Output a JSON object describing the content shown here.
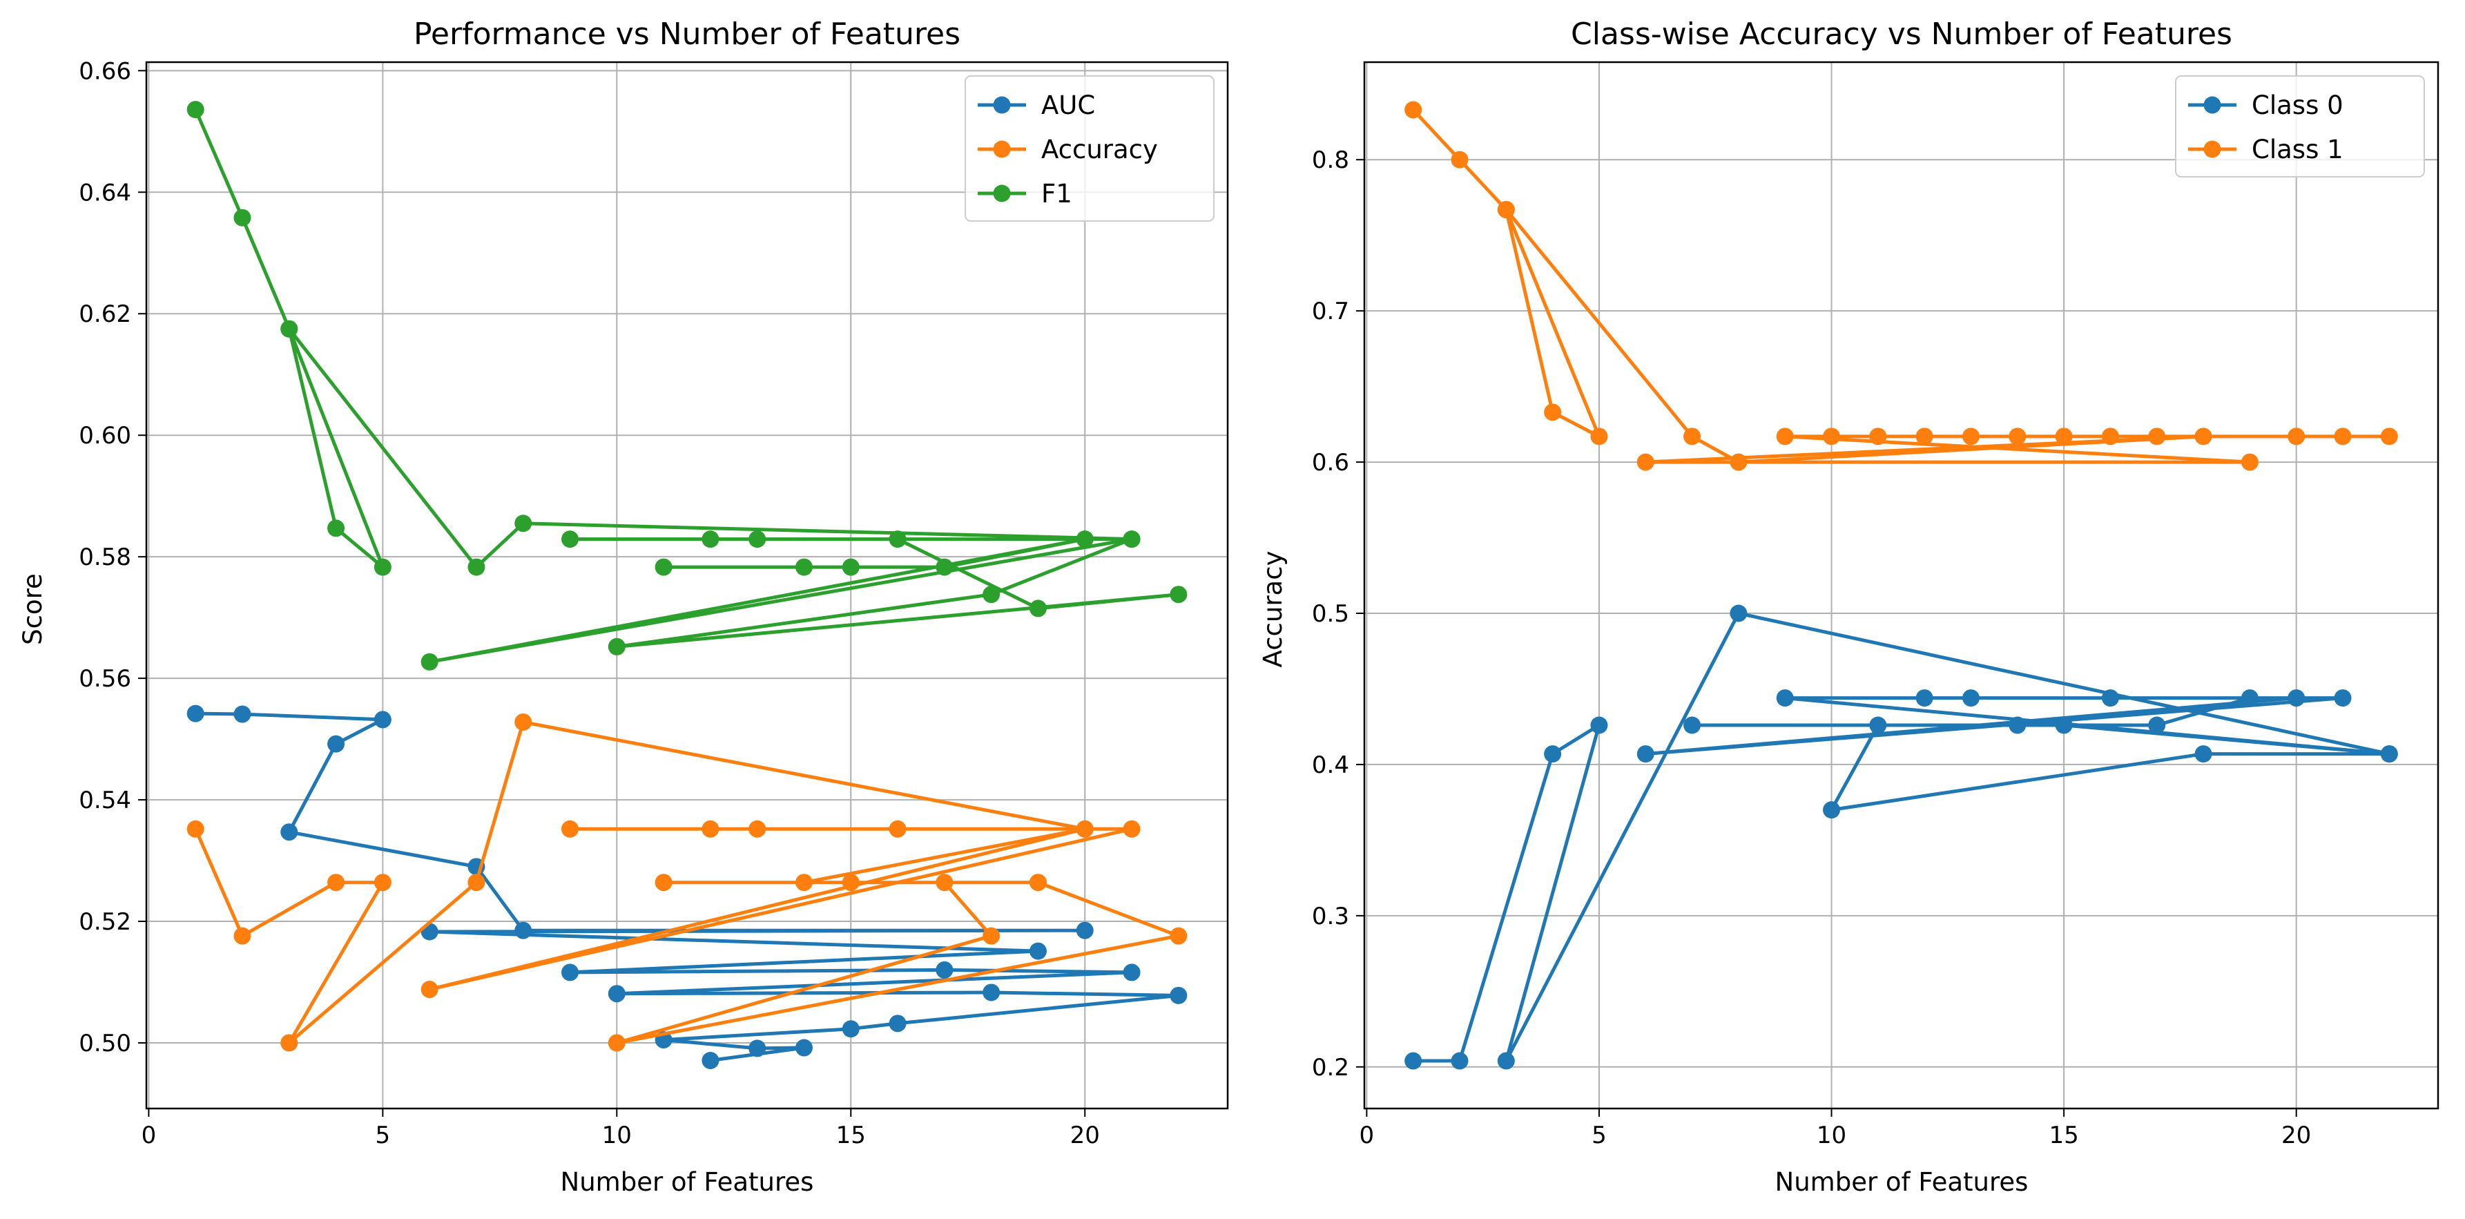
{
  "chart_data": [
    {
      "type": "line",
      "title": "Performance vs Number of Features",
      "xlabel": "Number of Features",
      "ylabel": "Score",
      "xlim": [
        -0.05,
        23.05
      ],
      "ylim": [
        0.4892,
        0.6614
      ],
      "xticks": [
        0,
        5,
        10,
        15,
        20
      ],
      "yticks": [
        0.5,
        0.52,
        0.54,
        0.56,
        0.58,
        0.6,
        0.62,
        0.64,
        0.66
      ],
      "ytick_decimals": 2,
      "grid": true,
      "legend": "top-right",
      "series": [
        {
          "name": "AUC",
          "color": "#1f77b4",
          "x": [
            1,
            2,
            5,
            4,
            3,
            7,
            8,
            20,
            6,
            19,
            9,
            17,
            21,
            10,
            18,
            22,
            16,
            15,
            11,
            13,
            14,
            12
          ],
          "y": [
            0.5542,
            0.5541,
            0.5532,
            0.5492,
            0.5347,
            0.529,
            0.5185,
            0.5185,
            0.5183,
            0.5151,
            0.5116,
            0.512,
            0.5116,
            0.5081,
            0.5083,
            0.5078,
            0.5032,
            0.5023,
            0.5005,
            0.4991,
            0.4992,
            0.4971
          ]
        },
        {
          "name": "Accuracy",
          "color": "#ff7f0e",
          "x": [
            1,
            2,
            4,
            5,
            3,
            7,
            8,
            20,
            9,
            12,
            13,
            16,
            21,
            6,
            20,
            14,
            11,
            15,
            19,
            22,
            10,
            18,
            17,
            19
          ],
          "y": [
            0.5352,
            0.5176,
            0.5264,
            0.5264,
            0.5,
            0.5264,
            0.5528,
            0.5352,
            0.5352,
            0.5352,
            0.5352,
            0.5352,
            0.5352,
            0.5088,
            0.5352,
            0.5264,
            0.5264,
            0.5264,
            0.5264,
            0.5176,
            0.5,
            0.5176,
            0.5264,
            0.5264
          ]
        },
        {
          "name": "F1",
          "color": "#2ca02c",
          "x": [
            1,
            2,
            3,
            4,
            5,
            3,
            7,
            8,
            21,
            9,
            20,
            12,
            13,
            16,
            19,
            22,
            10,
            18,
            21,
            6,
            20,
            17,
            11,
            14,
            15
          ],
          "y": [
            0.6536,
            0.6358,
            0.6175,
            0.5847,
            0.5783,
            0.6175,
            0.5783,
            0.5855,
            0.5829,
            0.5829,
            0.5829,
            0.5829,
            0.5829,
            0.5829,
            0.5715,
            0.5738,
            0.5652,
            0.5738,
            0.5829,
            0.5627,
            0.5829,
            0.5783,
            0.5783,
            0.5783,
            0.5783
          ]
        }
      ]
    },
    {
      "type": "line",
      "title": "Class-wise Accuracy vs Number of Features",
      "xlabel": "Number of Features",
      "ylabel": "Accuracy",
      "xlim": [
        -0.05,
        23.05
      ],
      "ylim": [
        0.1725,
        0.8645
      ],
      "xticks": [
        0,
        5,
        10,
        15,
        20
      ],
      "yticks": [
        0.2,
        0.3,
        0.4,
        0.5,
        0.6,
        0.7,
        0.8
      ],
      "ytick_decimals": 1,
      "grid": true,
      "legend": "top-right",
      "series": [
        {
          "name": "Class 0",
          "color": "#1f77b4",
          "x": [
            1,
            2,
            4,
            5,
            3,
            8,
            22,
            9,
            21,
            6,
            20,
            12,
            13,
            16,
            19,
            17,
            11,
            10,
            18,
            22,
            15,
            14,
            7
          ],
          "y": [
            0.204,
            0.204,
            0.407,
            0.426,
            0.204,
            0.5,
            0.407,
            0.444,
            0.444,
            0.407,
            0.444,
            0.444,
            0.444,
            0.444,
            0.444,
            0.426,
            0.426,
            0.37,
            0.407,
            0.407,
            0.426,
            0.426,
            0.426
          ]
        },
        {
          "name": "Class 1",
          "color": "#ff7f0e",
          "x": [
            1,
            2,
            3,
            4,
            5,
            3,
            7,
            8,
            18,
            6,
            19,
            9,
            10,
            11,
            12,
            13,
            14,
            15,
            16,
            17,
            20,
            21,
            22
          ],
          "y": [
            0.833,
            0.8,
            0.767,
            0.633,
            0.617,
            0.767,
            0.617,
            0.6,
            0.617,
            0.6,
            0.6,
            0.617,
            0.617,
            0.617,
            0.617,
            0.617,
            0.617,
            0.617,
            0.617,
            0.617,
            0.617,
            0.617,
            0.617
          ]
        }
      ]
    }
  ]
}
